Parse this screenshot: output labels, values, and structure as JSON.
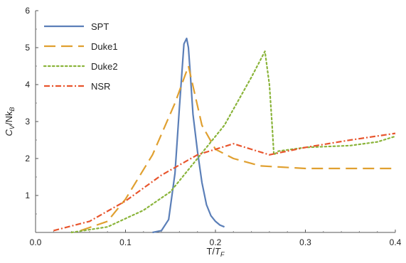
{
  "chart_data": {
    "type": "line",
    "xlabel": "T/T_F",
    "ylabel": "C_V/Nk_B",
    "xlim": [
      0.0,
      0.4
    ],
    "ylim": [
      0,
      6
    ],
    "xticks": [
      0.0,
      0.1,
      0.2,
      0.3,
      0.4
    ],
    "xtick_labels": [
      "0.0",
      "0.1",
      "0.2",
      "0.3",
      "0.4"
    ],
    "yticks": [
      1,
      2,
      3,
      4,
      5,
      6
    ],
    "ytick_labels": [
      "1",
      "2",
      "3",
      "4",
      "5",
      "6"
    ],
    "grid": false,
    "legend_position": "top-left",
    "series": [
      {
        "name": "SPT",
        "color": "#5b7fb8",
        "dash": "solid",
        "x": [
          0.13,
          0.14,
          0.148,
          0.155,
          0.16,
          0.165,
          0.168,
          0.17,
          0.172,
          0.175,
          0.18,
          0.185,
          0.19,
          0.195,
          0.2,
          0.205,
          0.21
        ],
        "y": [
          0.0,
          0.05,
          0.35,
          1.6,
          3.4,
          5.1,
          5.25,
          5.0,
          4.3,
          3.2,
          2.2,
          1.35,
          0.75,
          0.45,
          0.3,
          0.2,
          0.15
        ]
      },
      {
        "name": "Duke1",
        "color": "#e0a030",
        "dash": "long-dash",
        "x": [
          0.05,
          0.08,
          0.1,
          0.13,
          0.155,
          0.17,
          0.185,
          0.2,
          0.22,
          0.25,
          0.3,
          0.35,
          0.4
        ],
        "y": [
          0.05,
          0.3,
          0.9,
          2.1,
          3.5,
          4.5,
          2.9,
          2.25,
          2.0,
          1.8,
          1.73,
          1.73,
          1.73
        ]
      },
      {
        "name": "Duke2",
        "color": "#8ab43a",
        "dash": "dotted",
        "x": [
          0.04,
          0.08,
          0.12,
          0.15,
          0.18,
          0.21,
          0.24,
          0.255,
          0.26,
          0.263,
          0.265,
          0.27,
          0.3,
          0.35,
          0.38,
          0.4
        ],
        "y": [
          0.0,
          0.15,
          0.6,
          1.1,
          2.0,
          2.9,
          4.2,
          4.9,
          4.0,
          2.9,
          2.1,
          2.2,
          2.3,
          2.35,
          2.45,
          2.6
        ]
      },
      {
        "name": "NSR",
        "color": "#e8552d",
        "dash": "dash-dot",
        "x": [
          0.02,
          0.06,
          0.1,
          0.14,
          0.18,
          0.22,
          0.24,
          0.26,
          0.3,
          0.35,
          0.4
        ],
        "y": [
          0.05,
          0.3,
          0.85,
          1.55,
          2.1,
          2.4,
          2.25,
          2.1,
          2.3,
          2.5,
          2.68
        ]
      }
    ]
  }
}
